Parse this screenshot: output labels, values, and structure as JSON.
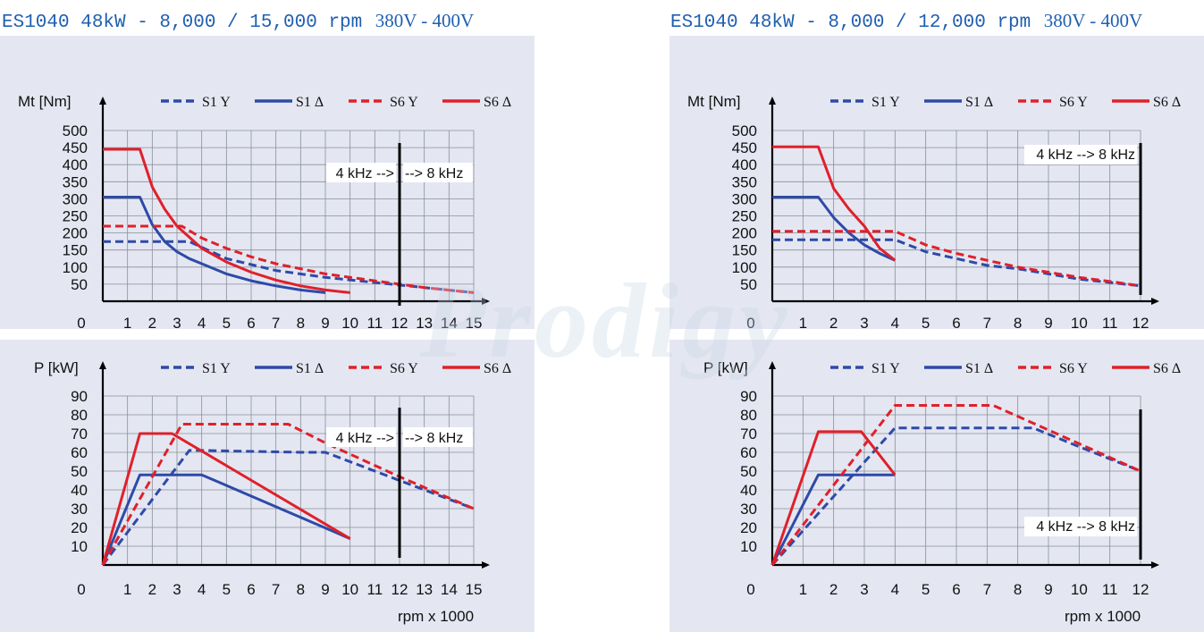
{
  "titles": {
    "left_main": "ES1040 48kW - 8,000 / 15,000 rpm",
    "left_volt": "380V - 400V",
    "right_main": "ES1040 48kW - 8,000 / 12,000 rpm",
    "right_volt": "380V - 400V"
  },
  "watermark": "Prodigy",
  "colors": {
    "blue": "#2e4aa8",
    "red": "#e0202a",
    "grid": "#8a8f99",
    "panel": "#e4e7f2"
  },
  "chart_data": [
    {
      "id": "torque-15000",
      "type": "line",
      "ylabel": "Mt [Nm]",
      "xlabel": "rpm x 1000",
      "xlim": [
        0,
        15
      ],
      "ylim": [
        0,
        500
      ],
      "xticks": [
        0,
        1,
        2,
        3,
        4,
        5,
        6,
        7,
        8,
        9,
        10,
        11,
        12,
        13,
        14,
        15
      ],
      "yticks": [
        50,
        100,
        150,
        200,
        250,
        300,
        350,
        400,
        450,
        500
      ],
      "vline": {
        "x": 12,
        "label_left": "4 kHz -->",
        "label_right": "--> 8 kHz"
      },
      "legend": [
        "S1 Y",
        "S1 Δ",
        "S6 Y",
        "S6 Δ"
      ],
      "grid": true,
      "series": [
        {
          "name": "S1 Y",
          "color": "blue",
          "dash": true,
          "x": [
            0,
            3.5,
            5,
            7,
            9,
            11,
            13,
            15
          ],
          "y": [
            175,
            175,
            125,
            90,
            70,
            55,
            40,
            25
          ]
        },
        {
          "name": "S1 Δ",
          "color": "blue",
          "dash": false,
          "x": [
            0,
            1.5,
            2,
            2.5,
            3,
            3.5,
            4,
            5,
            6,
            7,
            8,
            9
          ],
          "y": [
            305,
            305,
            225,
            175,
            145,
            125,
            110,
            80,
            60,
            45,
            33,
            25
          ]
        },
        {
          "name": "S6 Y",
          "color": "red",
          "dash": true,
          "x": [
            0,
            3.2,
            4,
            5,
            6,
            7,
            9,
            11,
            13,
            15
          ],
          "y": [
            220,
            220,
            185,
            155,
            130,
            110,
            80,
            60,
            40,
            25
          ]
        },
        {
          "name": "S6 Δ",
          "color": "red",
          "dash": false,
          "x": [
            0,
            1.5,
            2,
            2.5,
            3,
            4,
            5,
            6,
            7,
            8,
            9,
            10
          ],
          "y": [
            445,
            445,
            335,
            270,
            220,
            155,
            115,
            85,
            62,
            45,
            33,
            25
          ]
        }
      ]
    },
    {
      "id": "torque-12000",
      "type": "line",
      "ylabel": "Mt [Nm]",
      "xlabel": "rpm x 1000",
      "xlim": [
        0,
        12
      ],
      "ylim": [
        0,
        500
      ],
      "xticks": [
        0,
        1,
        2,
        3,
        4,
        5,
        6,
        7,
        8,
        9,
        10,
        11,
        12
      ],
      "yticks": [
        50,
        100,
        150,
        200,
        250,
        300,
        350,
        400,
        450,
        500
      ],
      "vline": {
        "x": 12,
        "label_left": "4 kHz --> 8 kHz",
        "label_right": ""
      },
      "legend": [
        "S1 Y",
        "S1 Δ",
        "S6 Y",
        "S6 Δ"
      ],
      "grid": true,
      "series": [
        {
          "name": "S1 Y",
          "color": "blue",
          "dash": true,
          "x": [
            0,
            4,
            5,
            6,
            7,
            8,
            9,
            10,
            11,
            12
          ],
          "y": [
            180,
            180,
            145,
            125,
            105,
            95,
            80,
            65,
            55,
            45
          ]
        },
        {
          "name": "S1 Δ",
          "color": "blue",
          "dash": false,
          "x": [
            0,
            1.5,
            2,
            2.5,
            3,
            3.5,
            4
          ],
          "y": [
            305,
            305,
            245,
            200,
            165,
            140,
            120
          ]
        },
        {
          "name": "S6 Y",
          "color": "red",
          "dash": true,
          "x": [
            0,
            4,
            5,
            6,
            7,
            8,
            9,
            10,
            11,
            12
          ],
          "y": [
            205,
            205,
            165,
            140,
            120,
            100,
            85,
            70,
            58,
            45
          ]
        },
        {
          "name": "S6 Δ",
          "color": "red",
          "dash": false,
          "x": [
            0,
            1.5,
            2,
            2.5,
            3,
            3.5,
            4
          ],
          "y": [
            452,
            452,
            330,
            270,
            220,
            155,
            120
          ]
        }
      ]
    },
    {
      "id": "power-15000",
      "type": "line",
      "ylabel": "P [kW]",
      "xlabel": "rpm x 1000",
      "xlim": [
        0,
        15
      ],
      "ylim": [
        0,
        90
      ],
      "xticks": [
        0,
        1,
        2,
        3,
        4,
        5,
        6,
        7,
        8,
        9,
        10,
        11,
        12,
        13,
        14,
        15
      ],
      "yticks": [
        10,
        20,
        30,
        40,
        50,
        60,
        70,
        80,
        90
      ],
      "vline": {
        "x": 12,
        "label_left": "4 kHz -->",
        "label_right": "--> 8 kHz"
      },
      "legend": [
        "S1 Y",
        "S1 Δ",
        "S6 Y",
        "S6 Δ"
      ],
      "grid": true,
      "series": [
        {
          "name": "S1 Y",
          "color": "blue",
          "dash": true,
          "x": [
            0,
            3.5,
            4,
            8,
            9,
            12,
            15
          ],
          "y": [
            0,
            61,
            61,
            60,
            60,
            45,
            30
          ]
        },
        {
          "name": "S1 Δ",
          "color": "blue",
          "dash": false,
          "x": [
            0,
            1.5,
            4,
            10
          ],
          "y": [
            0,
            48,
            48,
            14
          ]
        },
        {
          "name": "S6 Y",
          "color": "red",
          "dash": true,
          "x": [
            0,
            3.2,
            4,
            7.5,
            9,
            12,
            15
          ],
          "y": [
            0,
            75,
            75,
            75,
            65,
            47,
            30
          ]
        },
        {
          "name": "S6 Δ",
          "color": "red",
          "dash": false,
          "x": [
            0,
            1.5,
            2.8,
            10
          ],
          "y": [
            0,
            70,
            70,
            14
          ]
        }
      ]
    },
    {
      "id": "power-12000",
      "type": "line",
      "ylabel": "P [kW]",
      "xlabel": "rpm x 1000",
      "xlim": [
        0,
        12
      ],
      "ylim": [
        0,
        90
      ],
      "xticks": [
        0,
        1,
        2,
        3,
        4,
        5,
        6,
        7,
        8,
        9,
        10,
        11,
        12
      ],
      "yticks": [
        10,
        20,
        30,
        40,
        50,
        60,
        70,
        80,
        90
      ],
      "vline": {
        "x": 12,
        "label_left": "4 kHz --> 8 kHz",
        "label_right": ""
      },
      "legend": [
        "S1 Y",
        "S1 Δ",
        "S6 Y",
        "S6 Δ"
      ],
      "grid": true,
      "series": [
        {
          "name": "S1 Y",
          "color": "blue",
          "dash": true,
          "x": [
            0,
            4,
            8.5,
            10,
            12
          ],
          "y": [
            0,
            73,
            73,
            63,
            50
          ]
        },
        {
          "name": "S1 Δ",
          "color": "blue",
          "dash": false,
          "x": [
            0,
            1.5,
            4
          ],
          "y": [
            0,
            48,
            48
          ]
        },
        {
          "name": "S6 Y",
          "color": "red",
          "dash": true,
          "x": [
            0,
            4,
            7.2,
            12
          ],
          "y": [
            0,
            85,
            85,
            50
          ]
        },
        {
          "name": "S6 Δ",
          "color": "red",
          "dash": false,
          "x": [
            0,
            1.5,
            2.9,
            4
          ],
          "y": [
            0,
            71,
            71,
            48
          ]
        }
      ]
    }
  ]
}
